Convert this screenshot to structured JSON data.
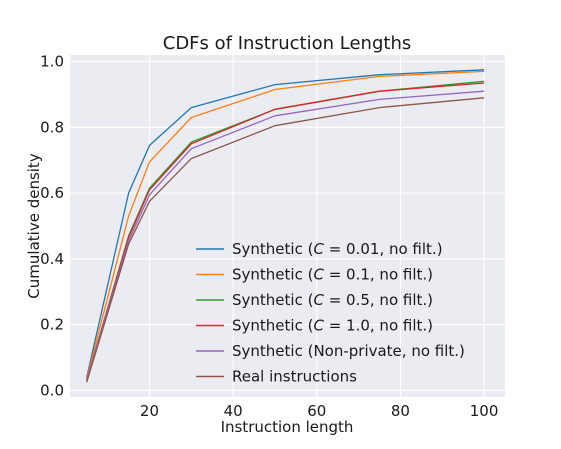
{
  "chart_data": {
    "type": "line",
    "title": "CDFs of Instruction Lengths",
    "xlabel": "Instruction length",
    "ylabel": "Cumulative density",
    "xlim": [
      1,
      105
    ],
    "ylim": [
      -0.02,
      1.02
    ],
    "xticks": [
      20,
      40,
      60,
      80,
      100
    ],
    "yticks": [
      0.0,
      0.2,
      0.4,
      0.6,
      0.8,
      1.0
    ],
    "xtick_labels": [
      "20",
      "40",
      "60",
      "80",
      "100"
    ],
    "ytick_labels": [
      "0.0",
      "0.2",
      "0.4",
      "0.6",
      "0.8",
      "1.0"
    ],
    "grid": true,
    "legend_position": "lower-right",
    "x": [
      5,
      15,
      20,
      30,
      50,
      75,
      100
    ],
    "series": [
      {
        "name": "Synthetic (C = 0.01, no filt.)",
        "color": "#1f77b4",
        "values": [
          0.04,
          0.6,
          0.745,
          0.86,
          0.93,
          0.96,
          0.975
        ]
      },
      {
        "name": "Synthetic (C = 0.1, no filt.)",
        "color": "#ff7f0e",
        "values": [
          0.035,
          0.53,
          0.695,
          0.83,
          0.915,
          0.955,
          0.97
        ]
      },
      {
        "name": "Synthetic (C = 0.5, no filt.)",
        "color": "#2ca02c",
        "values": [
          0.03,
          0.47,
          0.615,
          0.755,
          0.855,
          0.91,
          0.94
        ]
      },
      {
        "name": "Synthetic (C = 1.0, no filt.)",
        "color": "#d62728",
        "values": [
          0.03,
          0.465,
          0.61,
          0.75,
          0.855,
          0.91,
          0.935
        ]
      },
      {
        "name": "Synthetic (Non-private, no filt.)",
        "color": "#9467bd",
        "values": [
          0.03,
          0.455,
          0.595,
          0.735,
          0.835,
          0.885,
          0.91
        ]
      },
      {
        "name": "Real instructions",
        "color": "#8c564b",
        "values": [
          0.025,
          0.445,
          0.575,
          0.705,
          0.805,
          0.86,
          0.89
        ]
      }
    ]
  }
}
